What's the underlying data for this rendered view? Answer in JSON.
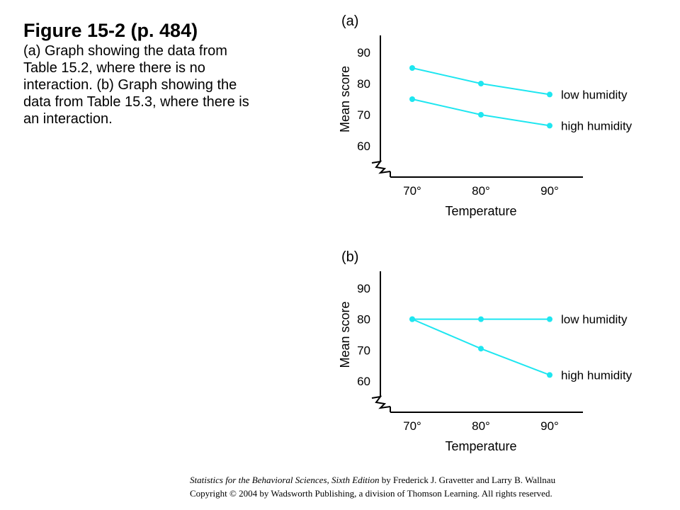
{
  "caption": {
    "title": "Figure 15-2  (p. 484)",
    "body": "(a) Graph showing the data from Table 15.2, where there is no interaction. (b) Graph showing the data from Table 15.3, where there is an interaction."
  },
  "footer": {
    "book_title": "Statistics for the Behavioral Sciences, Sixth Edition",
    "authors": " by Frederick J. Gravetter and Larry B. Wallnau",
    "copyright": "Copyright © 2004 by Wadsworth Publishing, a division of Thomson Learning.  All rights reserved."
  },
  "colors": {
    "series": "#1ee6f0",
    "axis": "#000000"
  },
  "chart_data": [
    {
      "type": "line",
      "panel_label": "(a)",
      "xlabel": "Temperature",
      "ylabel": "Mean score",
      "categories": [
        "70°",
        "80°",
        "90°"
      ],
      "yticks": [
        "60",
        "70",
        "80",
        "90"
      ],
      "ylim": [
        55,
        95
      ],
      "axis_break": true,
      "series": [
        {
          "name": "low humidity",
          "values": [
            85,
            80,
            76.5
          ]
        },
        {
          "name": "high humidity",
          "values": [
            75,
            70,
            66.5
          ]
        }
      ]
    },
    {
      "type": "line",
      "panel_label": "(b)",
      "xlabel": "Temperature",
      "ylabel": "Mean score",
      "categories": [
        "70°",
        "80°",
        "90°"
      ],
      "yticks": [
        "60",
        "70",
        "80",
        "90"
      ],
      "ylim": [
        55,
        95
      ],
      "axis_break": true,
      "series": [
        {
          "name": "low humidity",
          "values": [
            80,
            80,
            80
          ]
        },
        {
          "name": "high humidity",
          "values": [
            80,
            70.5,
            62
          ]
        }
      ]
    }
  ]
}
